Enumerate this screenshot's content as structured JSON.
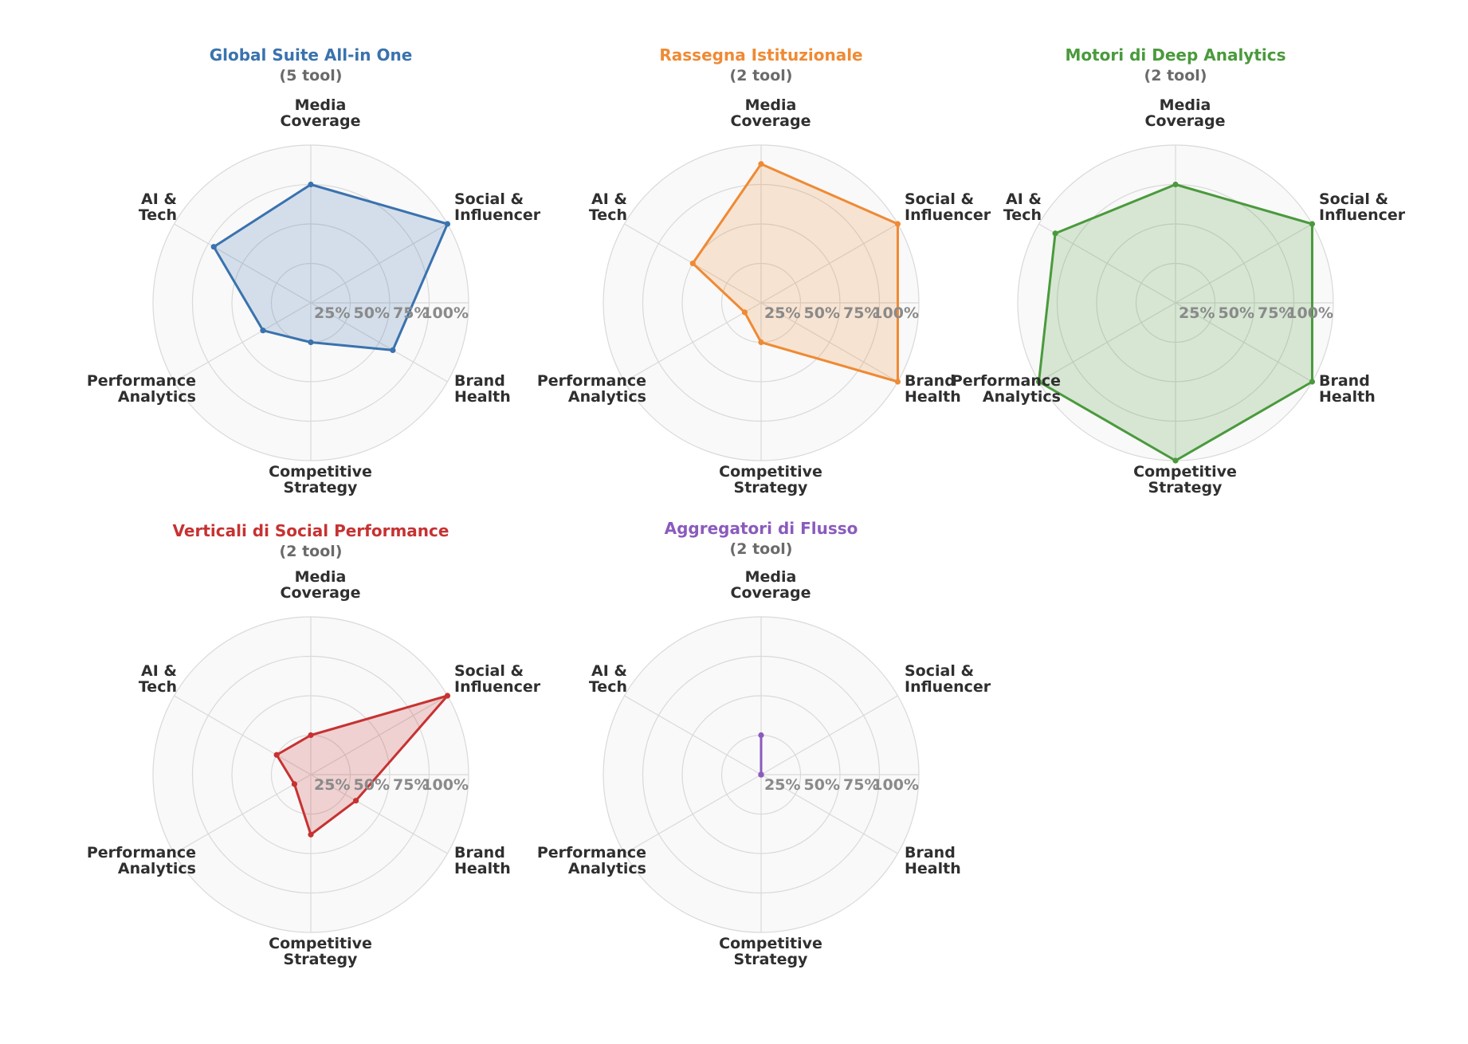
{
  "chart_data": {
    "type": "radar",
    "axes": [
      [
        "Media",
        "Coverage"
      ],
      [
        "Social &",
        "Influencer"
      ],
      [
        "Brand",
        "Health"
      ],
      [
        "Competitive",
        "Strategy"
      ],
      [
        "Performance",
        "Analytics"
      ],
      [
        "AI &",
        "Tech"
      ]
    ],
    "ticks": [
      "25%",
      "50%",
      "75%",
      "100%"
    ],
    "range": [
      0,
      100
    ],
    "charts": [
      {
        "title": "Global Suite All-in One",
        "subtitle": "(5 tool)",
        "color": "#3a72ae",
        "fill": "#3a72ae",
        "values": [
          75,
          100,
          60,
          25,
          35,
          71
        ]
      },
      {
        "title": "Rassegna Istituzionale",
        "subtitle": "(2 tool)",
        "color": "#ef8a34",
        "fill": "#ef8a34",
        "values": [
          88,
          100,
          100,
          25,
          12,
          50
        ]
      },
      {
        "title": "Motori di Deep Analytics",
        "subtitle": "(2 tool)",
        "color": "#4a9a3c",
        "fill": "#4a9a3c",
        "values": [
          75,
          100,
          100,
          100,
          100,
          88
        ]
      },
      {
        "title": "Verticali di Social Performance",
        "subtitle": "(2 tool)",
        "color": "#c73232",
        "fill": "#c73232",
        "values": [
          25,
          100,
          33,
          38,
          12,
          25
        ]
      },
      {
        "title": "Aggregatori di Flusso",
        "subtitle": "(2 tool)",
        "color": "#8a5bbd",
        "fill": "#8a5bbd",
        "values": [
          25,
          0,
          0,
          0,
          0,
          0
        ]
      }
    ]
  }
}
